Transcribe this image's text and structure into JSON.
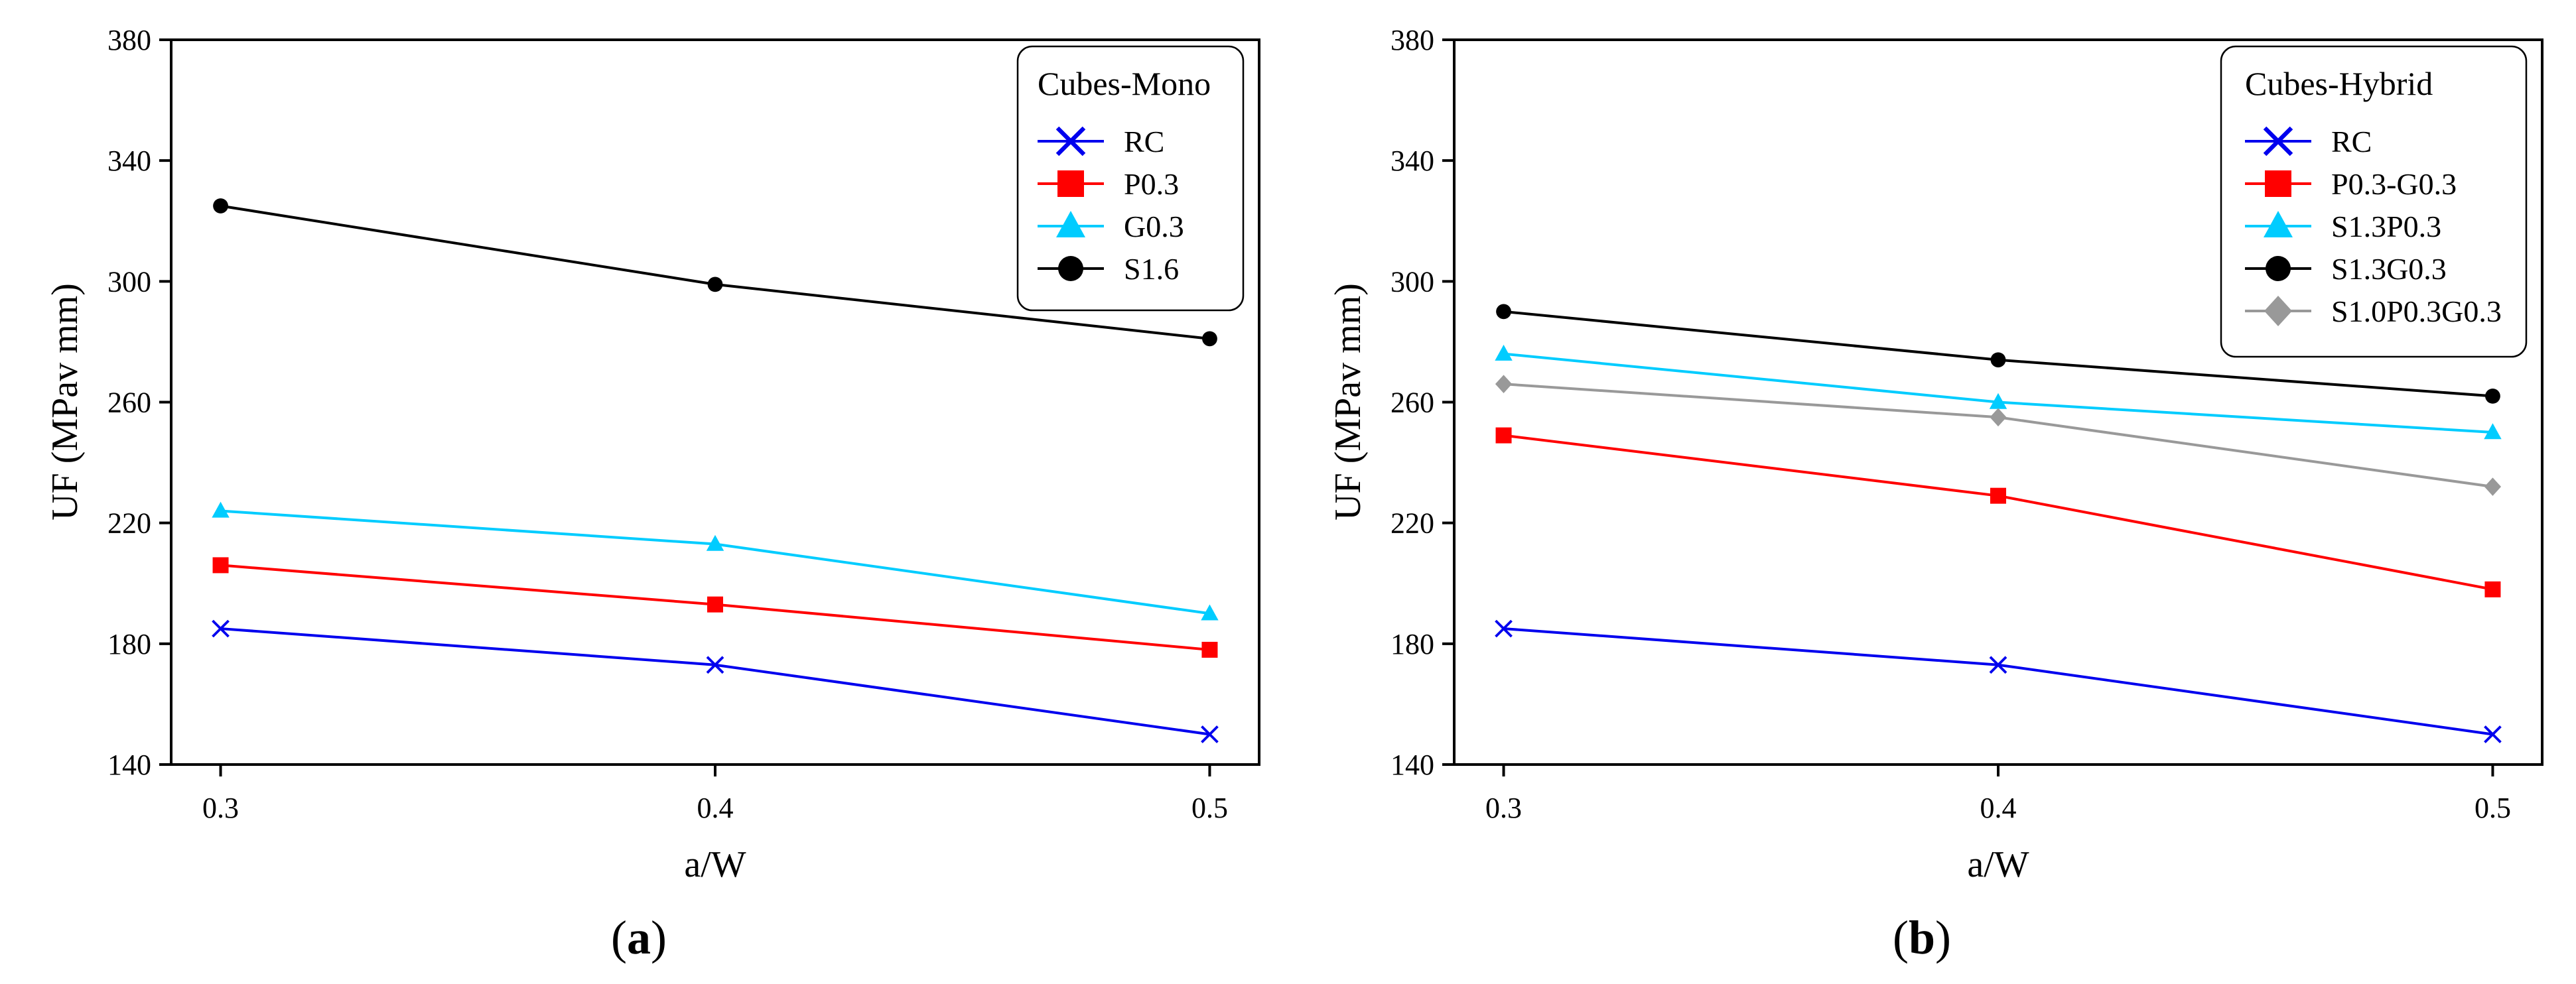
{
  "chart_data": [
    {
      "type": "line",
      "panel_label": {
        "prefix": "(",
        "letter": "a",
        "suffix": ")"
      },
      "xlabel": "a/W",
      "ylabel": "UF (MPav mm)",
      "x": [
        0.3,
        0.4,
        0.5
      ],
      "x_tick_labels": [
        "0.3",
        "0.4",
        "0.5"
      ],
      "xlim": [
        0.29,
        0.51
      ],
      "ylim": [
        140,
        380
      ],
      "y_ticks": [
        140,
        180,
        220,
        260,
        300,
        340,
        380
      ],
      "y_tick_labels": [
        "140",
        "180",
        "220",
        "260",
        "300",
        "340",
        "380"
      ],
      "legend_title": "Cubes-Mono",
      "legend_position": "top-right",
      "series": [
        {
          "name": "RC",
          "color": "#0000ee",
          "marker": "x",
          "values": [
            185,
            173,
            150
          ]
        },
        {
          "name": "P0.3",
          "color": "#ff0000",
          "marker": "square",
          "values": [
            206,
            193,
            178
          ]
        },
        {
          "name": "G0.3",
          "color": "#00ccff",
          "marker": "triangle",
          "values": [
            224,
            213,
            190
          ]
        },
        {
          "name": "S1.6",
          "color": "#000000",
          "marker": "circle",
          "values": [
            325,
            299,
            281
          ]
        }
      ]
    },
    {
      "type": "line",
      "panel_label": {
        "prefix": "(",
        "letter": "b",
        "suffix": ")"
      },
      "xlabel": "a/W",
      "ylabel": "UF (MPav mm)",
      "x": [
        0.3,
        0.4,
        0.5
      ],
      "x_tick_labels": [
        "0.3",
        "0.4",
        "0.5"
      ],
      "xlim": [
        0.29,
        0.51
      ],
      "ylim": [
        140,
        380
      ],
      "y_ticks": [
        140,
        180,
        220,
        260,
        300,
        340,
        380
      ],
      "y_tick_labels": [
        "140",
        "180",
        "220",
        "260",
        "300",
        "340",
        "380"
      ],
      "legend_title": "Cubes-Hybrid",
      "legend_position": "top-right",
      "series": [
        {
          "name": "RC",
          "color": "#0000ee",
          "marker": "x",
          "values": [
            185,
            173,
            150
          ]
        },
        {
          "name": "P0.3-G0.3",
          "color": "#ff0000",
          "marker": "square",
          "values": [
            249,
            229,
            198
          ]
        },
        {
          "name": "S1.3P0.3",
          "color": "#00ccff",
          "marker": "triangle",
          "values": [
            276,
            260,
            250
          ]
        },
        {
          "name": "S1.3G0.3",
          "color": "#000000",
          "marker": "circle",
          "values": [
            290,
            274,
            262
          ]
        },
        {
          "name": "S1.0P0.3G0.3",
          "color": "#999999",
          "marker": "diamond",
          "values": [
            266,
            255,
            232
          ]
        }
      ]
    }
  ]
}
